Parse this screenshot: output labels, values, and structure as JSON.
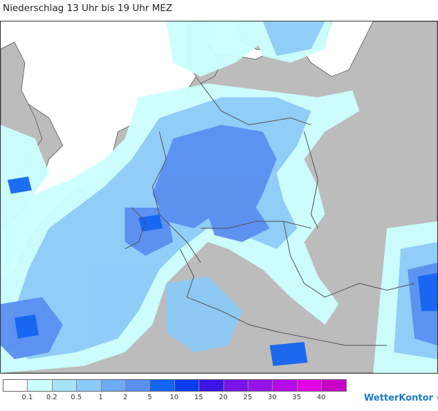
{
  "title": "Niederschlag 13 Uhr bis 19 Uhr MEZ",
  "legend": {
    "colors": [
      "#ffffff",
      "#ccffff",
      "#a6e2f8",
      "#8ccaf7",
      "#6eaaf5",
      "#5a8ef0",
      "#1464f0",
      "#0a3cf0",
      "#3c14e6",
      "#7a14e6",
      "#9614e6",
      "#b40ae6",
      "#e600e6",
      "#c800c8"
    ],
    "ticks": [
      "0.1",
      "0.2",
      "0.5",
      "1",
      "2",
      "5",
      "10",
      "15",
      "20",
      "25",
      "30",
      "35",
      "40"
    ]
  },
  "colors": {
    "land": "#bcbcbc",
    "sea": "#ffffff",
    "border": "#505050"
  },
  "brand": {
    "name": "WetterKontor",
    "icon": "rain-drops-icon"
  }
}
